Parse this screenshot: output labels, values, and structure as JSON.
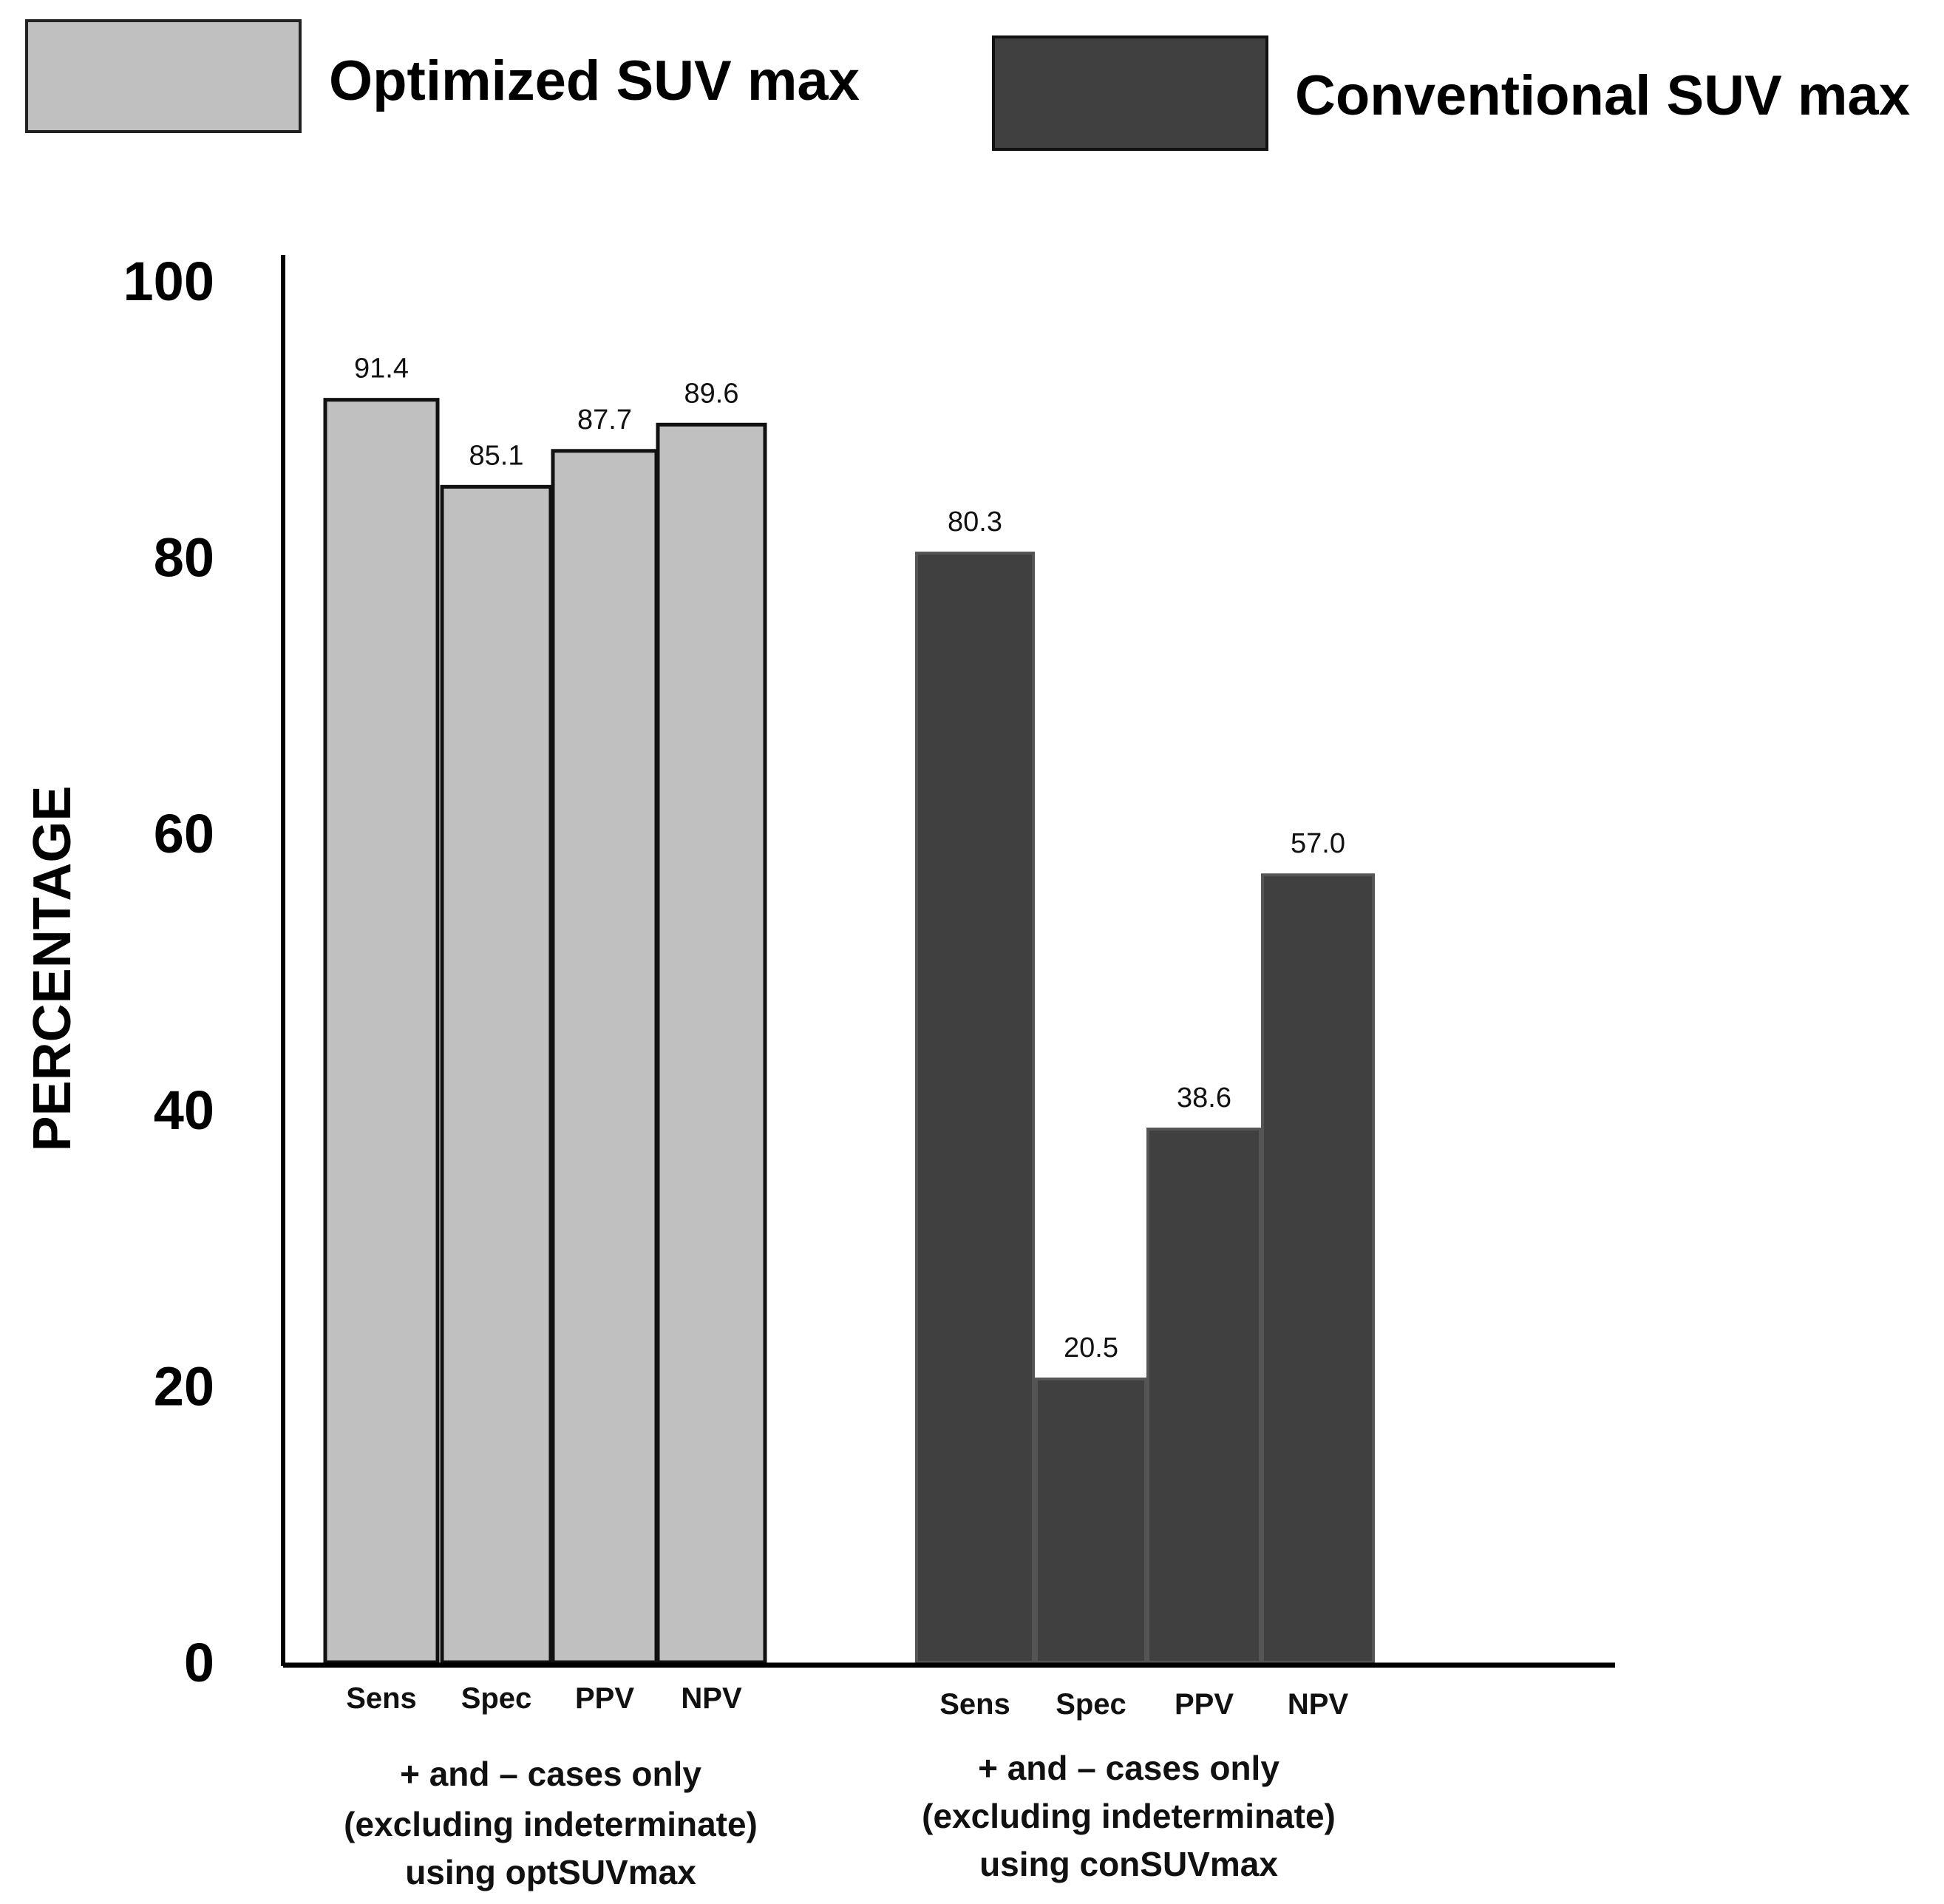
{
  "chart_data": {
    "type": "bar",
    "title": "",
    "xlabel": "",
    "ylabel": "PERCENTAGE",
    "ylim": [
      0,
      100
    ],
    "yticks": [
      "0",
      "20",
      "40",
      "60",
      "80",
      "100"
    ],
    "grid": false,
    "legend_position": "top",
    "categories": [
      "Sens",
      "Spec",
      "PPV",
      "NPV"
    ],
    "series": [
      {
        "name": "Optimized SUV max",
        "color": "#c0c0c0",
        "values": [
          91.4,
          85.1,
          87.7,
          89.6
        ],
        "value_labels": [
          "91.4",
          "85.1",
          "87.7",
          "89.6"
        ],
        "group_label": [
          "+ and – cases only",
          "(excluding indeterminate)",
          "using optSUVmax"
        ]
      },
      {
        "name": "Conventional SUV max",
        "color": "#404040",
        "values": [
          80.3,
          20.5,
          38.6,
          57.0
        ],
        "value_labels": [
          "80.3",
          "20.5",
          "38.6",
          "57.0"
        ],
        "group_label": [
          "+ and – cases only",
          "(excluding indeterminate)",
          "using conSUVmax"
        ]
      }
    ]
  }
}
